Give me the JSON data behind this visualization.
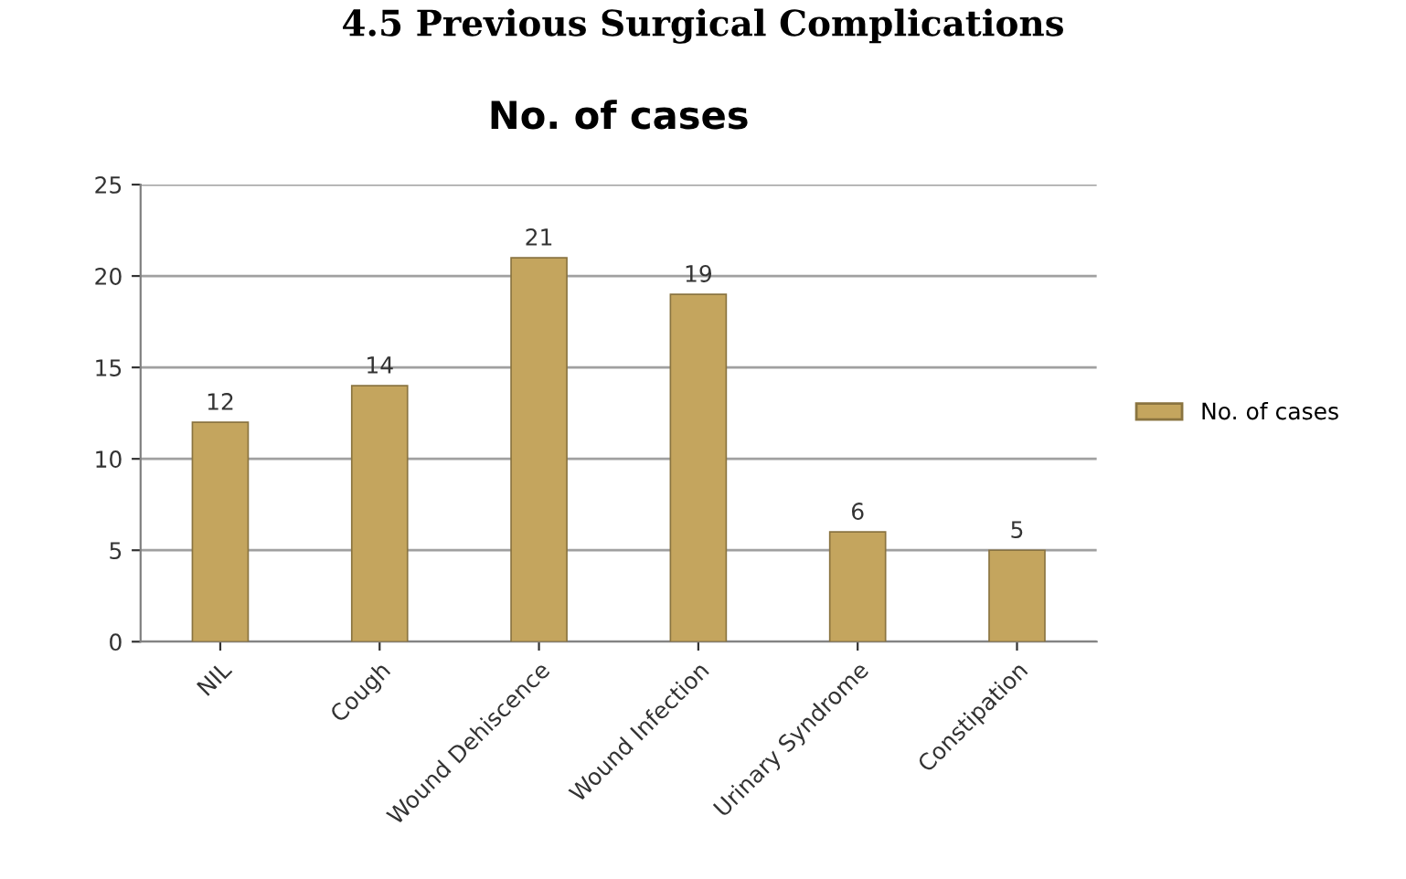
{
  "chart_data": {
    "type": "bar",
    "title": "4.5 Previous Surgical Complications",
    "subtitle": "No. of cases",
    "categories": [
      "NIL",
      "Cough",
      "Wound Dehiscence",
      "Wound Infection",
      "Urinary Syndrome",
      "Constipation"
    ],
    "series": [
      {
        "name": "No. of cases",
        "color": "#c4a55e",
        "values": [
          12,
          14,
          21,
          19,
          6,
          5
        ]
      }
    ],
    "ylim": [
      0,
      25
    ],
    "yticks": [
      0,
      5,
      10,
      15,
      20,
      25
    ],
    "grid": "y",
    "legend": "right",
    "data_labels": true
  }
}
